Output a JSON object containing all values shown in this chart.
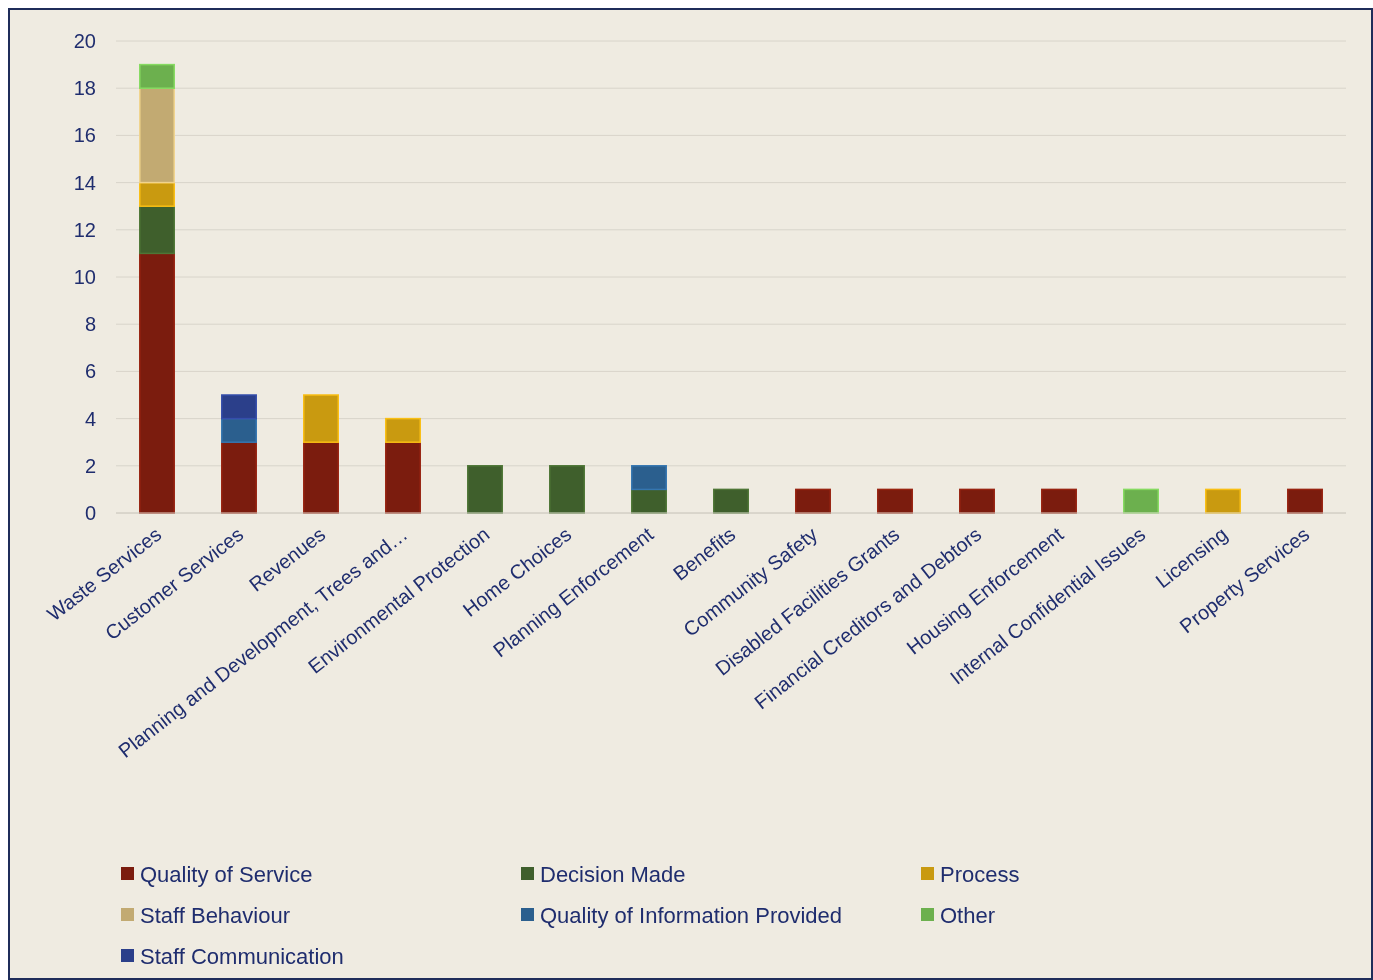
{
  "chart_data": {
    "type": "bar",
    "stacked": true,
    "categories": [
      "Waste Services",
      "Customer Services",
      "Revenues",
      "Planning and Development, Trees and…",
      "Environmental Protection",
      "Home Choices",
      "Planning Enforcement",
      "Benefits",
      "Community Safety",
      "Disabled Facilities Grants",
      "Financial Creditors and Debtors",
      "Housing Enforcement",
      "Internal Confidential Issues",
      "Licensing",
      "Property Services"
    ],
    "series": [
      {
        "name": "Quality of Service",
        "color": "#7b1c0e",
        "values": [
          11,
          3,
          3,
          3,
          0,
          0,
          0,
          0,
          1,
          1,
          1,
          1,
          0,
          0,
          1
        ]
      },
      {
        "name": "Decision Made",
        "color": "#3f5f2c",
        "values": [
          2,
          0,
          0,
          0,
          2,
          2,
          1,
          1,
          0,
          0,
          0,
          0,
          0,
          0,
          0
        ]
      },
      {
        "name": "Process",
        "color": "#c99a10",
        "values": [
          1,
          0,
          2,
          1,
          0,
          0,
          0,
          0,
          0,
          0,
          0,
          0,
          0,
          1,
          0
        ]
      },
      {
        "name": "Staff Behaviour",
        "color": "#c2aa72",
        "values": [
          4,
          0,
          0,
          0,
          0,
          0,
          0,
          0,
          0,
          0,
          0,
          0,
          0,
          0,
          0
        ]
      },
      {
        "name": "Quality of Information Provided",
        "color": "#2b5f8e",
        "values": [
          0,
          1,
          0,
          0,
          0,
          0,
          1,
          0,
          0,
          0,
          0,
          0,
          0,
          0,
          0
        ]
      },
      {
        "name": "Other",
        "color": "#6cb04e",
        "values": [
          1,
          0,
          0,
          0,
          0,
          0,
          0,
          0,
          0,
          0,
          0,
          0,
          1,
          0,
          0
        ]
      },
      {
        "name": "Staff Communication",
        "color": "#2b3f8a",
        "values": [
          0,
          1,
          0,
          0,
          0,
          0,
          0,
          0,
          0,
          0,
          0,
          0,
          0,
          0,
          0
        ]
      }
    ],
    "ylim": [
      0,
      20
    ],
    "yticks": [
      0,
      2,
      4,
      6,
      8,
      10,
      12,
      14,
      16,
      18,
      20
    ],
    "grid": "y",
    "legend": "bottom"
  }
}
